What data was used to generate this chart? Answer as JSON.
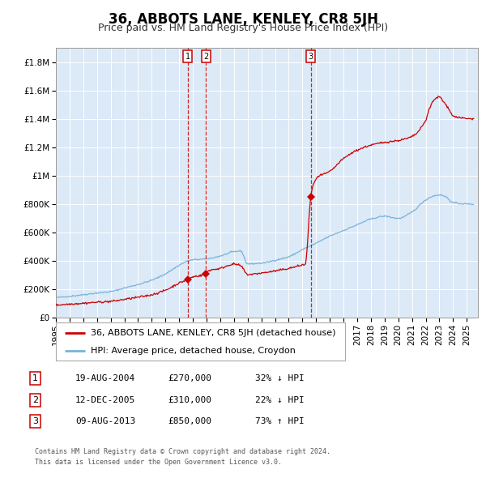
{
  "title": "36, ABBOTS LANE, KENLEY, CR8 5JH",
  "subtitle": "Price paid vs. HM Land Registry's House Price Index (HPI)",
  "background_color": "#dce9f7",
  "plot_bg_color": "#dce9f7",
  "hpi_color": "#7ab3d9",
  "price_color": "#cc0000",
  "ylim": [
    0,
    1900000
  ],
  "xlim_start": 1995.0,
  "xlim_end": 2025.8,
  "yticks": [
    0,
    200000,
    400000,
    600000,
    800000,
    1000000,
    1200000,
    1400000,
    1600000,
    1800000
  ],
  "ytick_labels": [
    "£0",
    "£200K",
    "£400K",
    "£600K",
    "£800K",
    "£1M",
    "£1.2M",
    "£1.4M",
    "£1.6M",
    "£1.8M"
  ],
  "xticks": [
    1995,
    1996,
    1997,
    1998,
    1999,
    2000,
    2001,
    2002,
    2003,
    2004,
    2005,
    2006,
    2007,
    2008,
    2009,
    2010,
    2011,
    2012,
    2013,
    2014,
    2015,
    2016,
    2017,
    2018,
    2019,
    2020,
    2021,
    2022,
    2023,
    2024,
    2025
  ],
  "sale_dates": [
    2004.637,
    2005.945,
    2013.607
  ],
  "sale_prices": [
    270000,
    310000,
    850000
  ],
  "sale_labels": [
    "1",
    "2",
    "3"
  ],
  "legend_line1": "36, ABBOTS LANE, KENLEY, CR8 5JH (detached house)",
  "legend_line2": "HPI: Average price, detached house, Croydon",
  "table_rows": [
    [
      "1",
      "19-AUG-2004",
      "£270,000",
      "32% ↓ HPI"
    ],
    [
      "2",
      "12-DEC-2005",
      "£310,000",
      "22% ↓ HPI"
    ],
    [
      "3",
      "09-AUG-2013",
      "£850,000",
      "73% ↑ HPI"
    ]
  ],
  "footnote": "Contains HM Land Registry data © Crown copyright and database right 2024.\nThis data is licensed under the Open Government Licence v3.0.",
  "title_fontsize": 12,
  "subtitle_fontsize": 9,
  "tick_fontsize": 7.5,
  "legend_fontsize": 8,
  "table_fontsize": 8,
  "footnote_fontsize": 6
}
